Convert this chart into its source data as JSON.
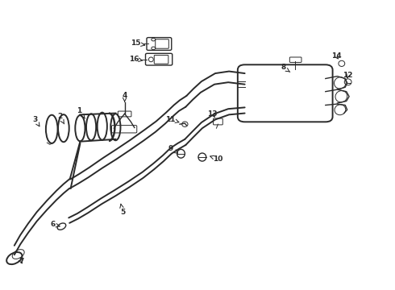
{
  "bg_color": "#ffffff",
  "line_color": "#2a2a2a",
  "figsize": [
    4.9,
    3.6
  ],
  "dpi": 100,
  "lw_main": 1.4,
  "lw_med": 1.0,
  "lw_thin": 0.7,
  "labels": {
    "1": [
      0.2,
      0.618,
      0.218,
      0.585
    ],
    "2": [
      0.15,
      0.6,
      0.162,
      0.572
    ],
    "3": [
      0.088,
      0.588,
      0.1,
      0.562
    ],
    "4": [
      0.315,
      0.672,
      0.315,
      0.648
    ],
    "5": [
      0.31,
      0.268,
      0.305,
      0.298
    ],
    "6": [
      0.132,
      0.225,
      0.152,
      0.218
    ],
    "7": [
      0.052,
      0.098,
      0.058,
      0.082
    ],
    "8": [
      0.718,
      0.768,
      0.74,
      0.748
    ],
    "9": [
      0.432,
      0.488,
      0.452,
      0.47
    ],
    "10": [
      0.552,
      0.452,
      0.53,
      0.462
    ],
    "11": [
      0.432,
      0.588,
      0.455,
      0.578
    ],
    "12": [
      0.882,
      0.74,
      0.878,
      0.722
    ],
    "13": [
      0.538,
      0.608,
      0.548,
      0.588
    ],
    "14": [
      0.852,
      0.808,
      0.862,
      0.79
    ],
    "15": [
      0.342,
      0.852,
      0.368,
      0.845
    ],
    "16": [
      0.338,
      0.798,
      0.362,
      0.792
    ]
  }
}
